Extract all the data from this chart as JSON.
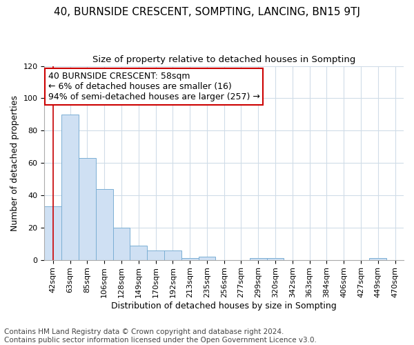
{
  "title": "40, BURNSIDE CRESCENT, SOMPTING, LANCING, BN15 9TJ",
  "subtitle": "Size of property relative to detached houses in Sompting",
  "xlabel": "Distribution of detached houses by size in Sompting",
  "ylabel": "Number of detached properties",
  "categories": [
    "42sqm",
    "63sqm",
    "85sqm",
    "106sqm",
    "128sqm",
    "149sqm",
    "170sqm",
    "192sqm",
    "213sqm",
    "235sqm",
    "256sqm",
    "277sqm",
    "299sqm",
    "320sqm",
    "342sqm",
    "363sqm",
    "384sqm",
    "406sqm",
    "427sqm",
    "449sqm",
    "470sqm"
  ],
  "values": [
    33,
    90,
    63,
    44,
    20,
    9,
    6,
    6,
    1,
    2,
    0,
    0,
    1,
    1,
    0,
    0,
    0,
    0,
    0,
    1,
    0
  ],
  "bar_color": "#cfe0f3",
  "bar_edge_color": "#7bafd4",
  "bg_color": "#ffffff",
  "grid_color": "#d0dce8",
  "annotation_box_text": "40 BURNSIDE CRESCENT: 58sqm\n← 6% of detached houses are smaller (16)\n94% of semi-detached houses are larger (257) →",
  "annotation_box_color": "#ffffff",
  "annotation_box_edge_color": "#cc0000",
  "red_line_x": 0,
  "ylim": [
    0,
    120
  ],
  "yticks": [
    0,
    20,
    40,
    60,
    80,
    100,
    120
  ],
  "footnote": "Contains HM Land Registry data © Crown copyright and database right 2024.\nContains public sector information licensed under the Open Government Licence v3.0.",
  "title_fontsize": 11,
  "subtitle_fontsize": 9.5,
  "xlabel_fontsize": 9,
  "ylabel_fontsize": 9,
  "tick_fontsize": 8,
  "annotation_fontsize": 9,
  "footnote_fontsize": 7.5
}
